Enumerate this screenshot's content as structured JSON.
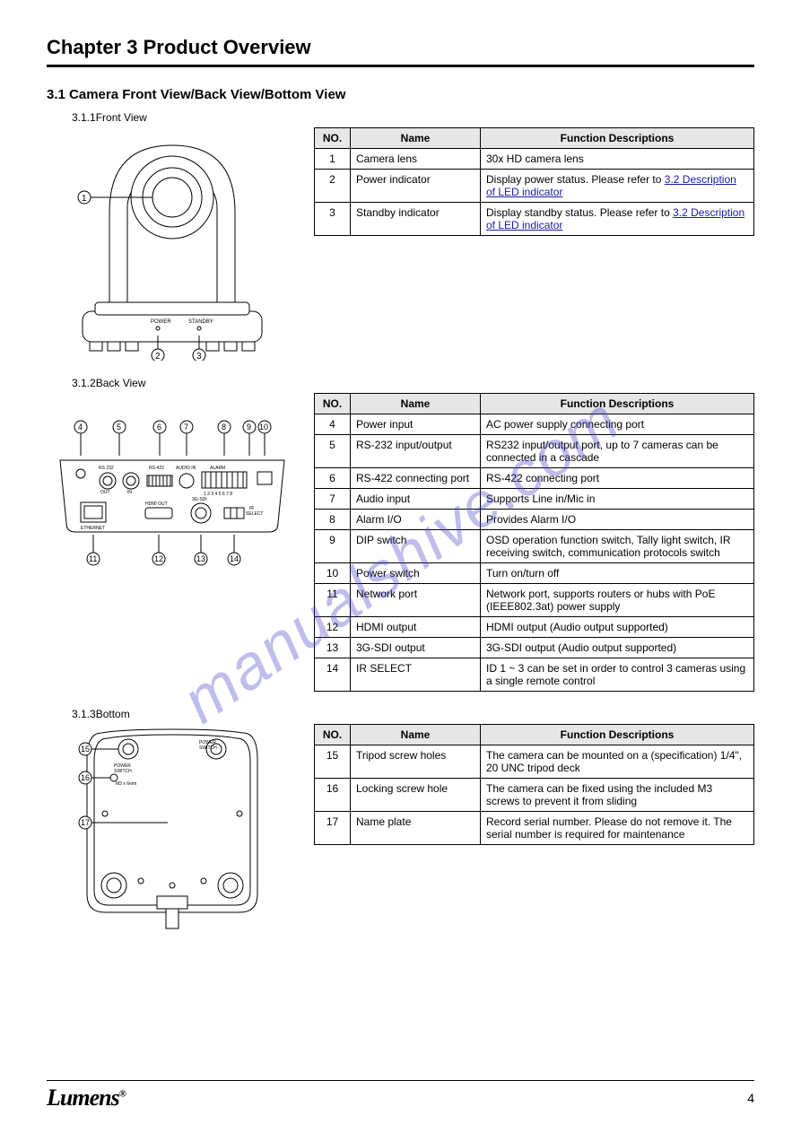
{
  "watermark": "manualshive.com",
  "chapter_title": "Chapter 3  Product Overview",
  "section_title": "3.1 Camera Front View/Back View/Bottom View",
  "front_sub": "3.1.1Front View",
  "back_sub": "3.1.2Back View",
  "bottom_sub": "3.1.3Bottom",
  "logo_text": "Lumens",
  "logo_r": "®",
  "page_number": "4",
  "table_headers": {
    "no": "NO.",
    "name": "Name",
    "func": "Function Descriptions"
  },
  "front": [
    {
      "no": "1",
      "name": "Camera lens",
      "func": "30x HD camera lens"
    },
    {
      "no": "2",
      "name": "Power indicator",
      "func": "Display power status. Please refer to ",
      "link": "3.2 Description of LED indicator"
    },
    {
      "no": "3",
      "name": "Standby indicator",
      "func": "Display standby status. Please refer to ",
      "link": "3.2 Description of LED indicator"
    }
  ],
  "back": [
    {
      "no": "4",
      "name": "Power input",
      "func": "AC power supply connecting port"
    },
    {
      "no": "5",
      "name": "RS-232 input/output",
      "func": "RS232 input/output port, up to 7 cameras can be connected in a cascade"
    },
    {
      "no": "6",
      "name": "RS-422 connecting port",
      "func": "RS-422 connecting port"
    },
    {
      "no": "7",
      "name": "Audio input",
      "func": "Supports Line in/Mic in"
    },
    {
      "no": "8",
      "name": "Alarm I/O",
      "func": "Provides Alarm I/O"
    },
    {
      "no": "9",
      "name": "DIP switch",
      "func": "OSD operation function switch, Tally light switch, IR receiving switch, communication protocols switch"
    },
    {
      "no": "10",
      "name": "Power switch",
      "func": "Turn on/turn off"
    },
    {
      "no": "11",
      "name": "Network port",
      "func": "Network port, supports routers or hubs with PoE (IEEE802.3at) power supply"
    },
    {
      "no": "12",
      "name": "HDMI output",
      "func": "HDMI output (Audio output supported)"
    },
    {
      "no": "13",
      "name": "3G-SDI output",
      "func": "3G-SDI output (Audio output supported)"
    },
    {
      "no": "14",
      "name": "IR SELECT",
      "func": "ID 1 ~ 3 can be set in order to control 3 cameras using a single remote control"
    }
  ],
  "bottom": [
    {
      "no": "15",
      "name": "Tripod screw holes",
      "func": "The camera can be mounted on a (specification) 1/4\", 20 UNC tripod deck"
    },
    {
      "no": "16",
      "name": "Locking screw hole",
      "func": "The camera can be fixed using the included M3 screws to prevent it from sliding"
    },
    {
      "no": "17",
      "name": "Name plate",
      "func": "Record serial number. Please do not remove it. The serial number is required for maintenance"
    }
  ],
  "diagram": {
    "front_labels": [
      "①",
      "②",
      "③",
      "POWER",
      "STANDBY"
    ],
    "back_labels": [
      "④",
      "⑤",
      "⑥",
      "⑦",
      "⑧",
      "⑨",
      "⑩",
      "⑪",
      "⑫",
      "⑬",
      "⑭"
    ],
    "bottom_labels": [
      "⑮",
      "⑯",
      "⑰"
    ],
    "back_port_texts": [
      "RS 232",
      "OUT",
      "IN",
      "RS-422",
      "AUDIO IN",
      "ALARM",
      "ETHERNET",
      "HDMI OUT",
      "3G-SDI",
      "IR",
      "SELECT"
    ],
    "bottom_text": [
      "POWER",
      "SWITCH",
      "M3 x 6mm"
    ],
    "dip_scale": "1 2 3 4 5 6 7 8",
    "stroke": "#000",
    "fill": "#fff"
  }
}
